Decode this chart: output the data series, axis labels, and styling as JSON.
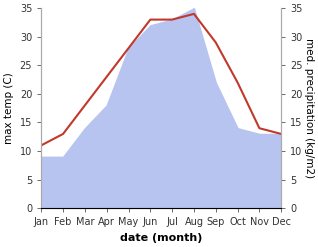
{
  "months": [
    "Jan",
    "Feb",
    "Mar",
    "Apr",
    "May",
    "Jun",
    "Jul",
    "Aug",
    "Sep",
    "Oct",
    "Nov",
    "Dec"
  ],
  "temp": [
    11,
    13,
    18,
    23,
    28,
    33,
    33,
    34,
    29,
    22,
    14,
    13
  ],
  "precip": [
    9,
    9,
    14,
    18,
    28,
    32,
    33,
    35,
    22,
    14,
    13,
    13
  ],
  "temp_color": "#c0392b",
  "precip_fill_color": "#b8c4f0",
  "background_color": "#ffffff",
  "ylabel_left": "max temp (C)",
  "ylabel_right": "med. precipitation (kg/m2)",
  "xlabel": "date (month)",
  "ylim": [
    0,
    35
  ],
  "axis_fontsize": 7.5,
  "tick_fontsize": 7,
  "xlabel_fontsize": 8
}
